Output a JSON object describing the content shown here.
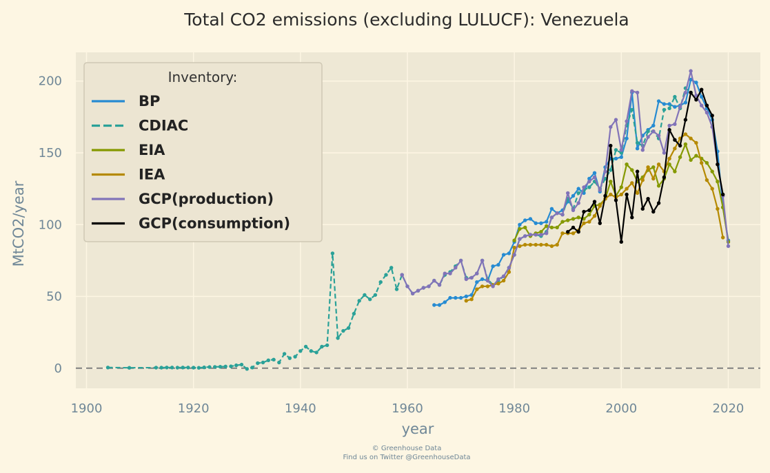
{
  "chart_data": {
    "type": "line",
    "title": "Total CO2 emissions (excluding LULUCF): Venezuela",
    "xlabel": "year",
    "ylabel": "MtCO2/year",
    "xlim": [
      1898,
      2026
    ],
    "ylim": [
      -14,
      220
    ],
    "xticks": [
      1900,
      1920,
      1940,
      1960,
      1980,
      2000,
      2020
    ],
    "yticks": [
      0,
      50,
      100,
      150,
      200
    ],
    "grid": true,
    "zero_line": true,
    "legend": {
      "title": "Inventory:",
      "placement": "top-left"
    },
    "series": [
      {
        "name": "BP",
        "color": "#268bd2",
        "style": "solid",
        "x": [
          1965,
          1966,
          1967,
          1968,
          1969,
          1970,
          1971,
          1972,
          1973,
          1974,
          1975,
          1976,
          1977,
          1978,
          1979,
          1980,
          1981,
          1982,
          1983,
          1984,
          1985,
          1986,
          1987,
          1988,
          1989,
          1990,
          1991,
          1992,
          1993,
          1994,
          1995,
          1996,
          1997,
          1998,
          1999,
          2000,
          2001,
          2002,
          2003,
          2004,
          2005,
          2006,
          2007,
          2008,
          2009,
          2010,
          2011,
          2012,
          2013,
          2014,
          2015,
          2016,
          2017,
          2018,
          2019,
          2020
        ],
        "y": [
          44,
          44,
          46,
          49,
          49,
          49,
          50,
          51,
          60,
          62,
          61,
          71,
          72,
          79,
          80,
          88,
          100,
          103,
          104,
          101,
          101,
          102,
          111,
          108,
          110,
          116,
          120,
          125,
          122,
          132,
          136,
          123,
          140,
          146,
          146,
          147,
          160,
          192,
          153,
          162,
          166,
          169,
          186,
          184,
          184,
          182,
          183,
          185,
          201,
          199,
          189,
          181,
          173,
          151,
          112,
          89
        ]
      },
      {
        "name": "CDIAC",
        "color": "#2aa198",
        "style": "dashed",
        "x": [
          1904,
          1908,
          1913,
          1914,
          1915,
          1916,
          1917,
          1918,
          1919,
          1920,
          1921,
          1922,
          1923,
          1924,
          1925,
          1926,
          1927,
          1928,
          1929,
          1930,
          1931,
          1932,
          1933,
          1934,
          1935,
          1936,
          1937,
          1938,
          1939,
          1940,
          1941,
          1942,
          1943,
          1944,
          1945,
          1946,
          1947,
          1948,
          1949,
          1950,
          1951,
          1952,
          1953,
          1954,
          1955,
          1956,
          1957,
          1958,
          1959,
          1960,
          1961,
          1962,
          1963,
          1964,
          1965,
          1966,
          1967,
          1968,
          1969,
          1970,
          1971,
          1972,
          1973,
          1974,
          1975,
          1976,
          1977,
          1978,
          1979,
          1980,
          1981,
          1982,
          1983,
          1984,
          1985,
          1986,
          1987,
          1988,
          1989,
          1990,
          1991,
          1992,
          1993,
          1994,
          1995,
          1996,
          1997,
          1998,
          1999,
          2000,
          2001,
          2002,
          2003,
          2004,
          2005,
          2006,
          2007,
          2008,
          2009,
          2010,
          2011,
          2012,
          2013
        ],
        "y": [
          0.5,
          0.3,
          0.4,
          0.4,
          0.5,
          0.5,
          0.4,
          0.5,
          0.5,
          0.4,
          0.3,
          0.6,
          0.8,
          0.9,
          1.0,
          1.2,
          1.3,
          2.0,
          2.5,
          -0.5,
          0.5,
          3.5,
          4.0,
          5.5,
          6.0,
          4.0,
          10.0,
          7.0,
          8.0,
          12.0,
          15.0,
          12.0,
          11.0,
          15.0,
          16.0,
          80.0,
          21.0,
          26.0,
          28.0,
          38.0,
          47.0,
          51.0,
          48.0,
          51.0,
          60.0,
          65.0,
          70.0,
          55.0,
          65.0,
          57.0,
          52.0,
          54.0,
          56.0,
          57.0,
          61.0,
          58.0,
          65.0,
          67.0,
          71.0,
          75.0,
          63.0,
          63.0,
          66.0,
          75.0,
          62.0,
          58.0,
          61.0,
          64.0,
          70.0,
          79.0,
          90.0,
          92.0,
          93.0,
          93.0,
          92.0,
          95.0,
          105.0,
          108.0,
          107.0,
          118.0,
          111.0,
          122.0,
          124.0,
          126.0,
          130.0,
          125.0,
          132.0,
          138.0,
          152.0,
          150.0,
          169.0,
          180.0,
          157.0,
          155.0,
          165.0,
          165.0,
          160.0,
          180.0,
          181.0,
          189.0,
          181.0,
          195.0,
          192.0
        ]
      },
      {
        "name": "EIA",
        "color": "#859900",
        "style": "solid",
        "x": [
          1980,
          1981,
          1982,
          1983,
          1984,
          1985,
          1986,
          1987,
          1988,
          1989,
          1990,
          1991,
          1992,
          1993,
          1994,
          1995,
          1996,
          1997,
          1998,
          1999,
          2000,
          2001,
          2002,
          2003,
          2004,
          2005,
          2006,
          2007,
          2008,
          2009,
          2010,
          2011,
          2012,
          2013,
          2014,
          2015,
          2016,
          2017,
          2018,
          2019,
          2020
        ],
        "y": [
          89,
          97,
          98,
          92,
          94,
          95,
          99,
          98,
          98,
          102,
          103,
          104,
          105,
          104,
          107,
          113,
          114,
          118,
          130,
          120,
          126,
          142,
          138,
          130,
          133,
          138,
          140,
          127,
          132,
          142,
          137,
          147,
          156,
          145,
          148,
          146,
          143,
          137,
          130,
          112,
          88
        ]
      },
      {
        "name": "IEA",
        "color": "#b58900",
        "style": "solid",
        "x": [
          1971,
          1972,
          1973,
          1974,
          1975,
          1976,
          1977,
          1978,
          1979,
          1980,
          1981,
          1982,
          1983,
          1984,
          1985,
          1986,
          1987,
          1988,
          1989,
          1990,
          1991,
          1992,
          1993,
          1994,
          1995,
          1996,
          1997,
          1998,
          1999,
          2000,
          2001,
          2002,
          2003,
          2004,
          2005,
          2006,
          2007,
          2008,
          2009,
          2010,
          2011,
          2012,
          2013,
          2014,
          2015,
          2016,
          2017,
          2018,
          2019
        ],
        "y": [
          47,
          48,
          55,
          57,
          57,
          58,
          59,
          61,
          67,
          84,
          85,
          86,
          86,
          86,
          86,
          86,
          85,
          86,
          94,
          94,
          94,
          96,
          101,
          102,
          106,
          113,
          118,
          121,
          119,
          121,
          125,
          129,
          122,
          131,
          140,
          132,
          142,
          137,
          146,
          153,
          160,
          163,
          160,
          157,
          143,
          131,
          125,
          111,
          91
        ]
      },
      {
        "name": "GCP(production)",
        "color": "#8173b8",
        "style": "solid",
        "x": [
          1959,
          1960,
          1961,
          1962,
          1963,
          1964,
          1965,
          1966,
          1967,
          1968,
          1969,
          1970,
          1971,
          1972,
          1973,
          1974,
          1975,
          1976,
          1977,
          1978,
          1979,
          1980,
          1981,
          1982,
          1983,
          1984,
          1985,
          1986,
          1987,
          1988,
          1989,
          1990,
          1991,
          1992,
          1993,
          1994,
          1995,
          1996,
          1997,
          1998,
          1999,
          2000,
          2001,
          2002,
          2003,
          2004,
          2005,
          2006,
          2007,
          2008,
          2009,
          2010,
          2011,
          2012,
          2013,
          2014,
          2015,
          2016,
          2017,
          2018,
          2019,
          2020
        ],
        "y": [
          65,
          57,
          52,
          54,
          56,
          57,
          61,
          58,
          66,
          66,
          70,
          75,
          62,
          63,
          66,
          75,
          61,
          57,
          62,
          64,
          70,
          79,
          90,
          92,
          93,
          93,
          93,
          94,
          105,
          108,
          107,
          122,
          110,
          115,
          126,
          130,
          133,
          124,
          137,
          168,
          173,
          152,
          172,
          193,
          192,
          152,
          161,
          165,
          162,
          150,
          169,
          170,
          182,
          192,
          207,
          190,
          183,
          178,
          168,
          142,
          120,
          85
        ]
      },
      {
        "name": "GCP(consumption)",
        "color": "#000000",
        "style": "solid",
        "x": [
          1990,
          1991,
          1992,
          1993,
          1994,
          1995,
          1996,
          1997,
          1998,
          1999,
          2000,
          2001,
          2002,
          2003,
          2004,
          2005,
          2006,
          2007,
          2008,
          2009,
          2010,
          2011,
          2012,
          2013,
          2014,
          2015,
          2016,
          2017,
          2018,
          2019
        ],
        "y": [
          95,
          98,
          95,
          109,
          110,
          116,
          101,
          120,
          155,
          117,
          88,
          121,
          105,
          137,
          111,
          118,
          109,
          115,
          133,
          166,
          159,
          155,
          173,
          192,
          187,
          194,
          183,
          176,
          142,
          121
        ]
      }
    ]
  },
  "credits": {
    "line1": "© Greenhouse Data",
    "line2": "Find us on Twitter @GreenhouseData"
  }
}
